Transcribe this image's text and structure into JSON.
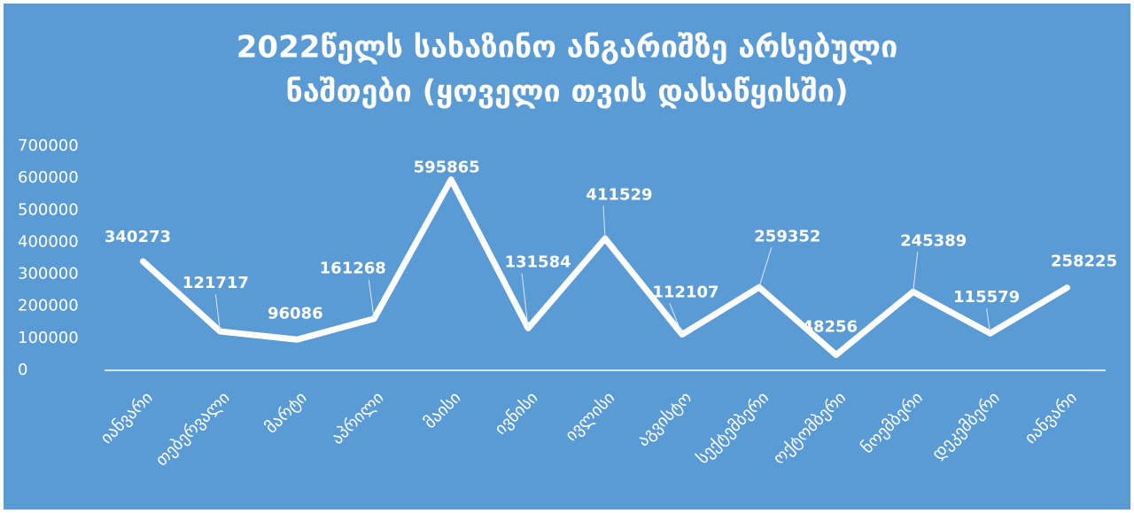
{
  "chart_data": {
    "type": "line",
    "title": [
      "2022წელს სახაზინო ანგარიშზე არსებული",
      "ნაშთები  (ყოველი თვის დასაწყისში)"
    ],
    "categories": [
      "იანვარი",
      "თებერვალი",
      "მარტი",
      "აპრილი",
      "მაისი",
      "ივნისი",
      "ივლისი",
      "აგვისტო",
      "სექტემბერი",
      "ოქტომბერი",
      "ნოემბერი",
      "დეკემბერი",
      "იანვარი"
    ],
    "values": [
      340273,
      121717,
      96086,
      161268,
      595865,
      131584,
      411529,
      112107,
      259352,
      48256,
      245389,
      115579,
      258225
    ],
    "color": "#ffffff",
    "ylim": [
      0,
      700000
    ],
    "yticks": [
      0,
      100000,
      200000,
      300000,
      400000,
      500000,
      600000,
      700000
    ]
  }
}
